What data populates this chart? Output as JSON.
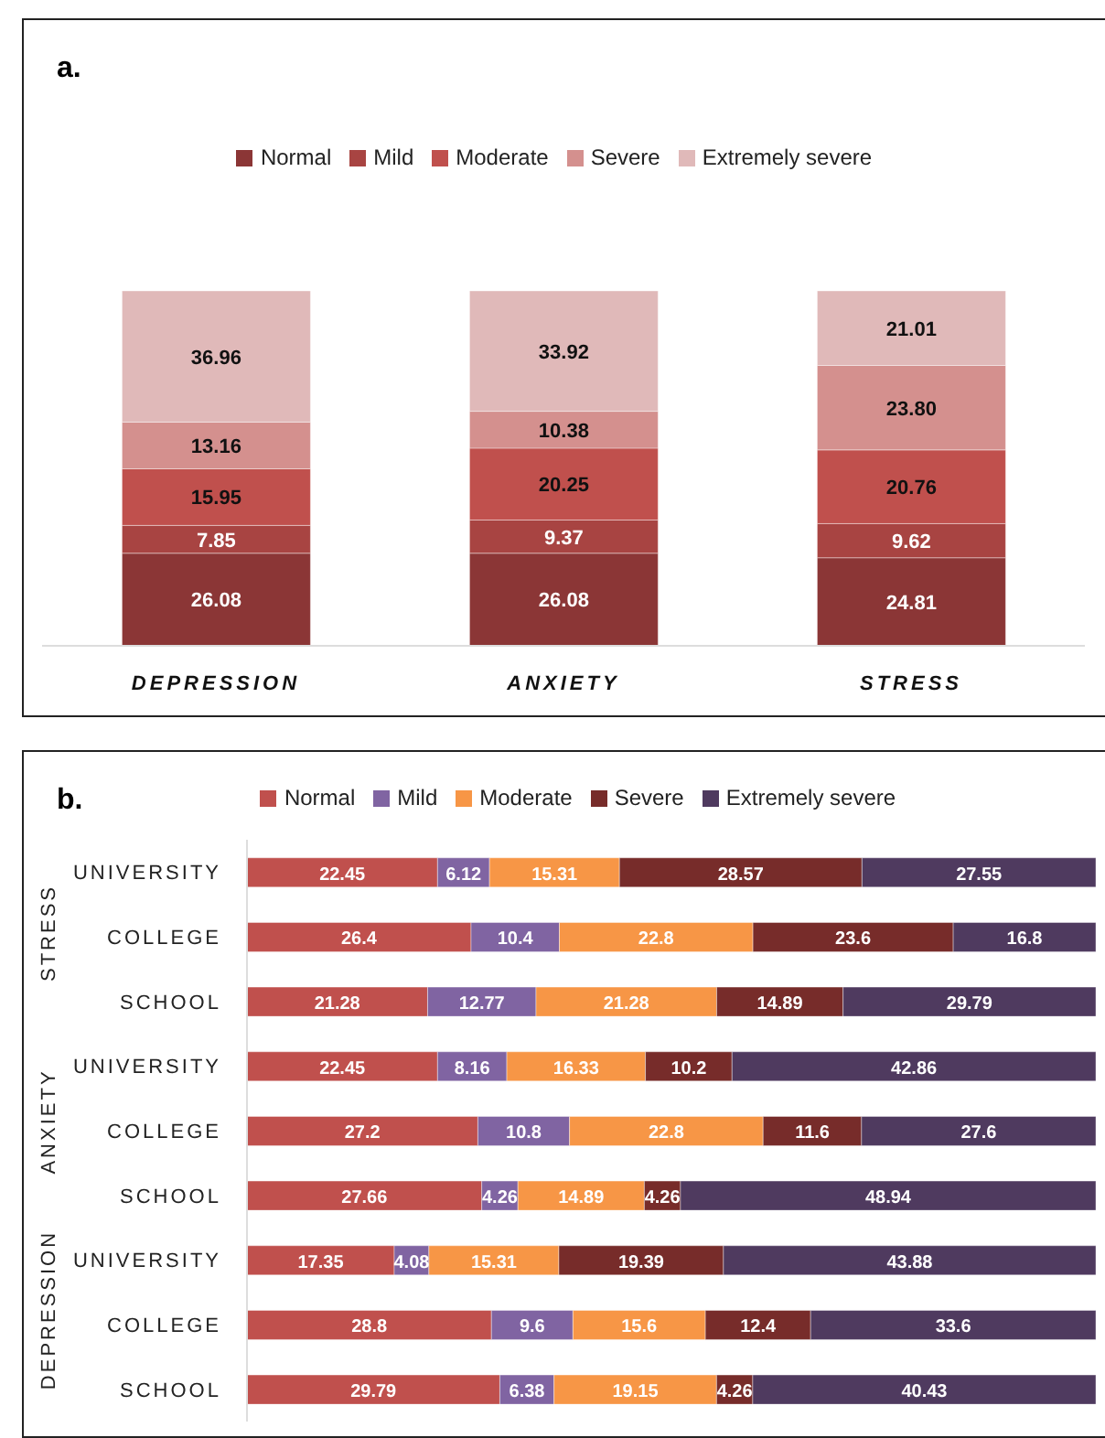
{
  "chart_data": [
    {
      "type": "bar",
      "title": "a.",
      "stacked": true,
      "legend": "top",
      "tick_labels": "x",
      "categories": [
        "DEPRESSION",
        "ANXIETY",
        "STRESS"
      ],
      "series": [
        {
          "name": "Normal",
          "color": "#8b3636",
          "values": [
            26.08,
            26.08,
            24.81
          ],
          "value_labels": [
            "26.08",
            "26.08",
            "24.81"
          ]
        },
        {
          "name": "Mild",
          "color": "#a84442",
          "values": [
            7.85,
            9.37,
            9.62
          ],
          "value_labels": [
            "7.85",
            "9.37",
            "9.62"
          ]
        },
        {
          "name": "Moderate",
          "color": "#c0504d",
          "values": [
            15.95,
            20.25,
            20.76
          ],
          "value_labels": [
            "15.95",
            "20.25",
            "20.76"
          ]
        },
        {
          "name": "Severe",
          "color": "#d4908e",
          "values": [
            13.16,
            10.38,
            23.8
          ],
          "value_labels": [
            "13.16",
            "10.38",
            "23.80"
          ]
        },
        {
          "name": "Extremely severe",
          "color": "#e0b9b9",
          "values": [
            36.96,
            33.92,
            21.01
          ],
          "value_labels": [
            "36.96",
            "33.92",
            "21.01"
          ]
        }
      ]
    },
    {
      "type": "bar",
      "title": "b.",
      "stacked": true,
      "orientation": "horizontal",
      "data_labels": true,
      "legend": "top",
      "tick_labels": "y",
      "xlim": [
        0,
        100
      ],
      "categories": [
        "UNIVERSITY",
        "COLLEGE",
        "SCHOOL",
        "UNIVERSITY",
        "COLLEGE",
        "SCHOOL",
        "UNIVERSITY",
        "COLLEGE",
        "SCHOOL"
      ],
      "annotations": [
        "STRESS",
        "ANXIETY",
        "DEPRESSION"
      ],
      "series": [
        {
          "name": "Normal",
          "color": "#c0504d",
          "values": [
            22.45,
            26.4,
            21.28,
            22.45,
            27.2,
            27.66,
            17.35,
            28.8,
            29.79
          ]
        },
        {
          "name": "Mild",
          "color": "#8064a2",
          "values": [
            6.12,
            10.4,
            12.77,
            8.16,
            10.8,
            4.26,
            4.08,
            9.6,
            6.38
          ]
        },
        {
          "name": "Moderate",
          "color": "#f79646",
          "values": [
            15.31,
            22.8,
            21.28,
            16.33,
            22.8,
            14.89,
            15.31,
            15.6,
            19.15
          ]
        },
        {
          "name": "Severe",
          "color": "#772c2a",
          "values": [
            28.57,
            23.6,
            14.89,
            10.2,
            11.6,
            4.26,
            19.39,
            12.4,
            4.26
          ]
        },
        {
          "name": "Extremely severe",
          "color": "#4f3a5f",
          "values": [
            27.55,
            16.8,
            29.79,
            42.86,
            27.6,
            48.94,
            43.88,
            33.6,
            40.43
          ]
        }
      ]
    }
  ]
}
